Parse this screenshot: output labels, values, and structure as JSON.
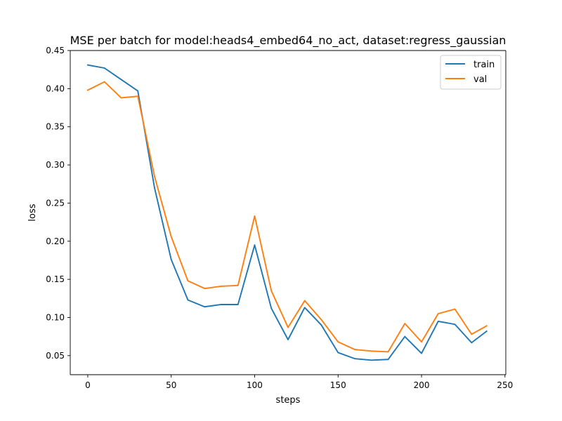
{
  "chart_data": {
    "type": "line",
    "title": "MSE per batch for model:heads4_embed64_no_act, dataset:regress_gaussian",
    "xlabel": "steps",
    "ylabel": "loss",
    "xlim": [
      -10.5,
      250.5
    ],
    "ylim": [
      0.025,
      0.45
    ],
    "x_ticks": [
      0,
      50,
      100,
      150,
      200,
      250
    ],
    "y_ticks": [
      0.05,
      0.1,
      0.15,
      0.2,
      0.25,
      0.3,
      0.35,
      0.4,
      0.45
    ],
    "x_tick_labels": [
      "0",
      "50",
      "100",
      "150",
      "200",
      "250"
    ],
    "y_tick_labels": [
      "0.05",
      "0.10",
      "0.15",
      "0.20",
      "0.25",
      "0.30",
      "0.35",
      "0.40",
      "0.45"
    ],
    "grid": false,
    "legend_position": "top-right",
    "x": [
      0,
      10,
      20,
      30,
      40,
      50,
      60,
      70,
      80,
      90,
      100,
      110,
      120,
      130,
      140,
      150,
      160,
      170,
      180,
      190,
      200,
      210,
      220,
      230,
      239
    ],
    "series": [
      {
        "name": "train",
        "color": "#1f77b4",
        "values": [
          0.431,
          0.427,
          0.412,
          0.397,
          0.27,
          0.176,
          0.123,
          0.114,
          0.117,
          0.117,
          0.195,
          0.112,
          0.071,
          0.113,
          0.09,
          0.054,
          0.046,
          0.044,
          0.045,
          0.075,
          0.053,
          0.095,
          0.091,
          0.067,
          0.082
        ]
      },
      {
        "name": "val",
        "color": "#ff7f0e",
        "values": [
          0.398,
          0.409,
          0.388,
          0.39,
          0.285,
          0.206,
          0.148,
          0.138,
          0.141,
          0.142,
          0.233,
          0.135,
          0.087,
          0.122,
          0.097,
          0.068,
          0.058,
          0.056,
          0.055,
          0.092,
          0.068,
          0.105,
          0.111,
          0.078,
          0.089
        ]
      }
    ]
  }
}
